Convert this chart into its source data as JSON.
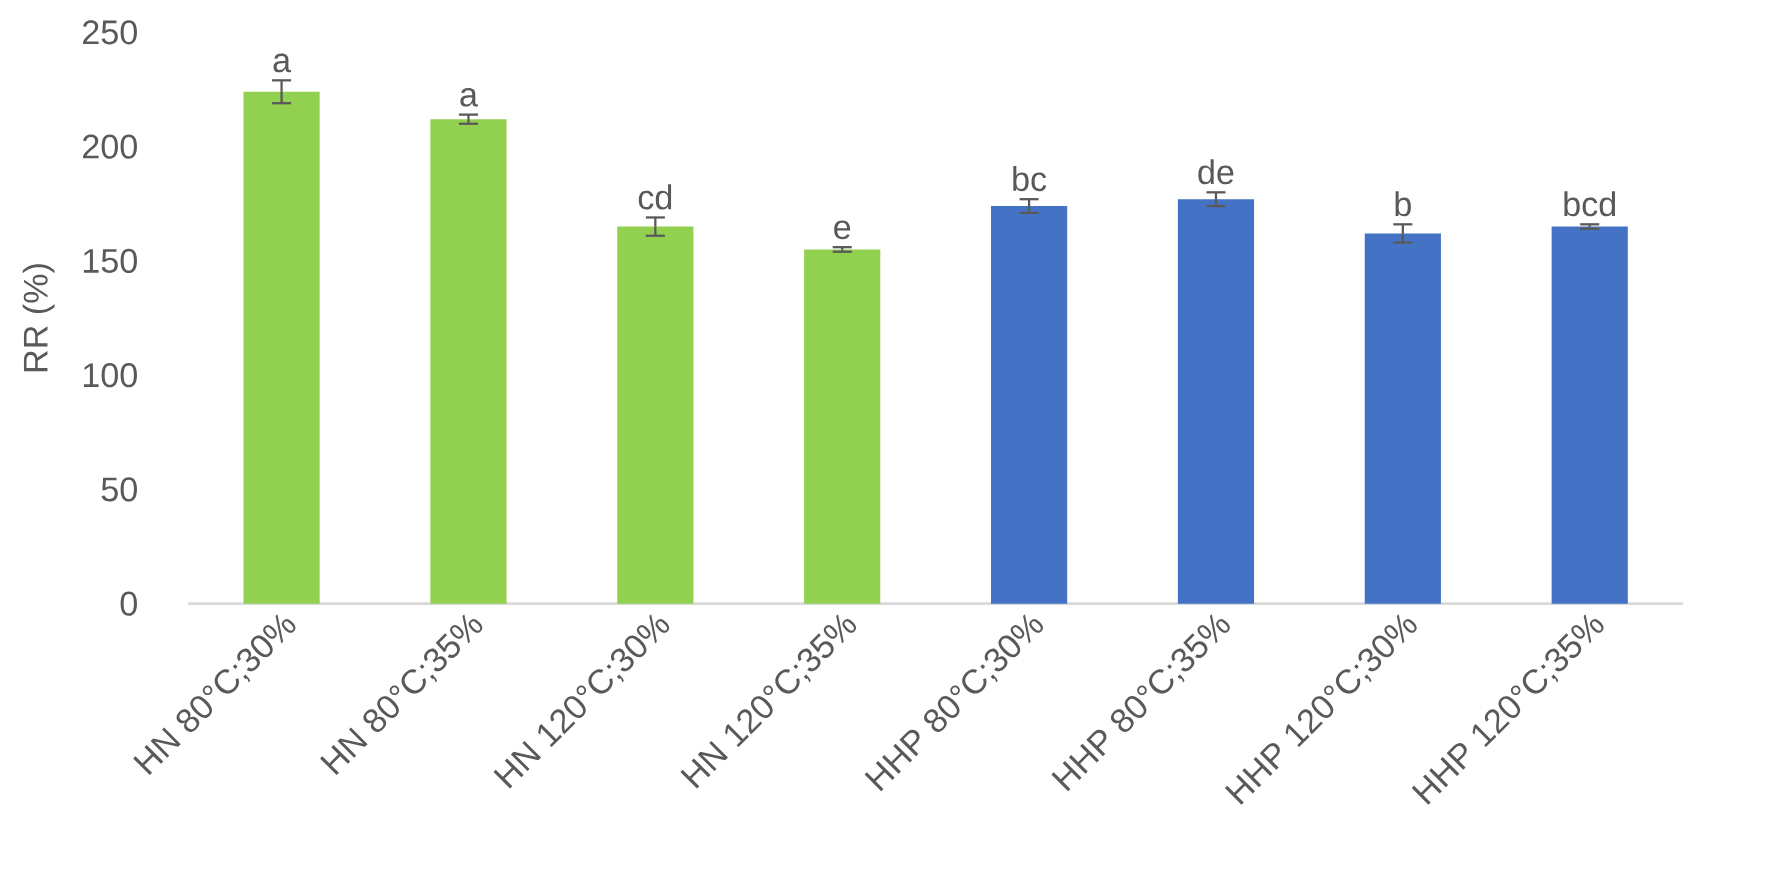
{
  "chart_data": {
    "type": "bar",
    "ylabel": "RR (%)",
    "categories": [
      "HN 80°C;30%",
      "HN 80°C;35%",
      "HN 120°C;30%",
      "HN 120°C;35%",
      "HHP 80°C;30%",
      "HHP 80°C;35%",
      "HHP 120°C;30%",
      "HHP 120°C;35%"
    ],
    "values": [
      224,
      212,
      165,
      155,
      174,
      177,
      162,
      165
    ],
    "errors": [
      5,
      2,
      4,
      1,
      3,
      3,
      4,
      1
    ],
    "colors": [
      "#92d050",
      "#92d050",
      "#92d050",
      "#92d050",
      "#4472c4",
      "#4472c4",
      "#4472c4",
      "#4472c4"
    ],
    "ylim": [
      0,
      250
    ],
    "yticks": [
      0,
      50,
      100,
      150,
      200,
      250
    ],
    "grid": false,
    "annotations": [
      {
        "text": "a",
        "x": "HN 80°C;30%",
        "y": 224
      },
      {
        "text": "a",
        "x": "HN 80°C;35%",
        "y": 212
      },
      {
        "text": "cd",
        "x": "HN 120°C;30%",
        "y": 165
      },
      {
        "text": "e",
        "x": "HN 120°C;35%",
        "y": 155
      },
      {
        "text": "bc",
        "x": "HHP 80°C;30%",
        "y": 174
      },
      {
        "text": "de",
        "x": "HHP 80°C;35%",
        "y": 177
      },
      {
        "text": "b",
        "x": "HHP 120°C;30%",
        "y": 162
      },
      {
        "text": "bcd",
        "x": "HHP 120°C;35%",
        "y": 165
      }
    ]
  }
}
